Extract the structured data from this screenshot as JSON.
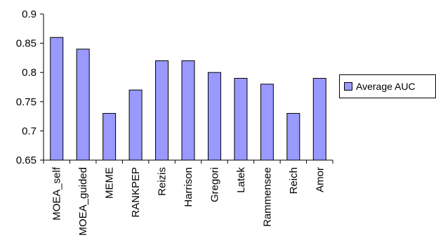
{
  "chart_data": {
    "type": "bar",
    "categories": [
      "MOEA_self",
      "MOEA_guided",
      "MEME",
      "RANKPEP",
      "Reizis",
      "Harrison",
      "Gregori",
      "Latek",
      "Rammensee",
      "Reich",
      "Amor"
    ],
    "series": [
      {
        "name": "Average AUC",
        "values": [
          0.86,
          0.84,
          0.73,
          0.77,
          0.82,
          0.82,
          0.8,
          0.79,
          0.78,
          0.73,
          0.79
        ]
      }
    ],
    "y_ticks": [
      "0.65",
      "0.7",
      "0.75",
      "0.8",
      "0.85",
      "0.9"
    ],
    "ylim": [
      0.65,
      0.9
    ],
    "grid": false,
    "legend_position": "right",
    "title": "",
    "xlabel": "",
    "ylabel": ""
  },
  "colors": {
    "bar_fill": "#9999ff",
    "bar_stroke": "#000000",
    "axis": "#000000"
  }
}
